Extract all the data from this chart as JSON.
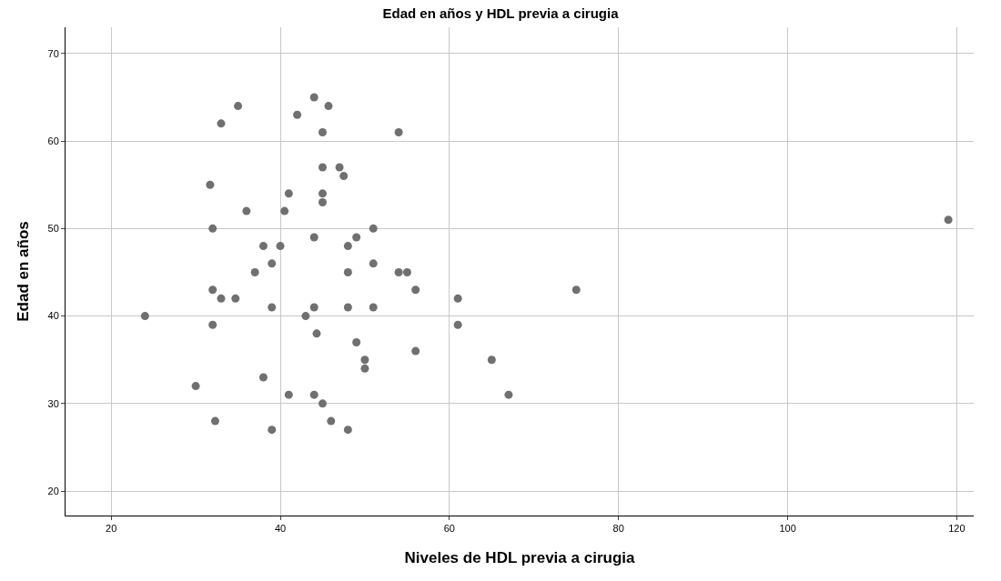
{
  "chart_data": {
    "type": "scatter",
    "title": "Edad en años y HDL previa a cirugia",
    "xlabel": "Niveles de HDL previa a cirugia",
    "ylabel": "Edad en años",
    "x": [
      24,
      30,
      31.7,
      32,
      32,
      32,
      32.3,
      33,
      33,
      34.7,
      35,
      36,
      37,
      38,
      38,
      39,
      39,
      39,
      40,
      40.5,
      41,
      41,
      42,
      43,
      44,
      44,
      44,
      44,
      44.3,
      45,
      45,
      45,
      45,
      45,
      45.7,
      46,
      47,
      47.5,
      48,
      48,
      48,
      48,
      49,
      49,
      50,
      50,
      51,
      51,
      51,
      54,
      54,
      55,
      56,
      56,
      61,
      61,
      65,
      67,
      75,
      119
    ],
    "series": [
      {
        "color": "#707070",
        "values": [
          40,
          32,
          55,
          50,
          43,
          39,
          28,
          62,
          42,
          42,
          64,
          52,
          45,
          48,
          33,
          46,
          41,
          27,
          48,
          52,
          54,
          31,
          63,
          40,
          65,
          49,
          41,
          31,
          38,
          61,
          57,
          54,
          53,
          30,
          64,
          28,
          57,
          56,
          48,
          45,
          41,
          27,
          49,
          37,
          35,
          34,
          50,
          46,
          41,
          61,
          45,
          45,
          43,
          36,
          42,
          39,
          35,
          31,
          43,
          51
        ]
      }
    ],
    "xlim": [
      14.6,
      122
    ],
    "xticks": [
      20,
      40,
      60,
      80,
      100,
      120
    ],
    "ylim": [
      17.2,
      73
    ],
    "yticks": [
      20,
      30,
      40,
      50,
      60,
      70
    ],
    "grid": true,
    "marker": "circle"
  }
}
